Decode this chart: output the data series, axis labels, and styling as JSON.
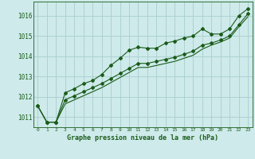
{
  "title": "Graphe pression niveau de la mer (hPa)",
  "background_color": "#ceeaea",
  "grid_color": "#aacece",
  "line_color": "#1a5c1a",
  "xlim": [
    -0.5,
    23.5
  ],
  "ylim": [
    1010.5,
    1016.7
  ],
  "yticks": [
    1011,
    1012,
    1013,
    1014,
    1015,
    1016
  ],
  "xtick_labels": [
    "0",
    "1",
    "2",
    "3",
    "4",
    "5",
    "6",
    "7",
    "8",
    "9",
    "10",
    "11",
    "12",
    "13",
    "14",
    "15",
    "16",
    "17",
    "18",
    "19",
    "20",
    "21",
    "22",
    "23"
  ],
  "series1_x": [
    0,
    1,
    2,
    3,
    4,
    5,
    6,
    7,
    8,
    9,
    10,
    11,
    12,
    13,
    14,
    15,
    16,
    17,
    18,
    19,
    20,
    21,
    22,
    23
  ],
  "series1_y": [
    1011.55,
    1010.75,
    1010.75,
    1012.2,
    1012.4,
    1012.65,
    1012.8,
    1013.1,
    1013.55,
    1013.9,
    1014.3,
    1014.45,
    1014.4,
    1014.4,
    1014.65,
    1014.75,
    1014.9,
    1015.0,
    1015.35,
    1015.1,
    1015.1,
    1015.35,
    1016.0,
    1016.35
  ],
  "series2_x": [
    0,
    1,
    2,
    3,
    4,
    5,
    6,
    7,
    8,
    9,
    10,
    11,
    12,
    13,
    14,
    15,
    16,
    17,
    18,
    19,
    20,
    21,
    22,
    23
  ],
  "series2_y": [
    1011.55,
    1010.75,
    1010.75,
    1011.85,
    1012.05,
    1012.25,
    1012.45,
    1012.65,
    1012.9,
    1013.15,
    1013.4,
    1013.65,
    1013.65,
    1013.75,
    1013.85,
    1013.95,
    1014.1,
    1014.25,
    1014.55,
    1014.65,
    1014.8,
    1015.0,
    1015.55,
    1016.1
  ],
  "series3_x": [
    0,
    1,
    2,
    3,
    4,
    5,
    6,
    7,
    8,
    9,
    10,
    11,
    12,
    13,
    14,
    15,
    16,
    17,
    18,
    19,
    20,
    21,
    22,
    23
  ],
  "series3_y": [
    1011.55,
    1010.75,
    1010.75,
    1011.65,
    1011.85,
    1012.05,
    1012.25,
    1012.45,
    1012.7,
    1012.95,
    1013.2,
    1013.45,
    1013.45,
    1013.55,
    1013.65,
    1013.75,
    1013.9,
    1014.05,
    1014.35,
    1014.55,
    1014.7,
    1014.9,
    1015.45,
    1015.95
  ]
}
